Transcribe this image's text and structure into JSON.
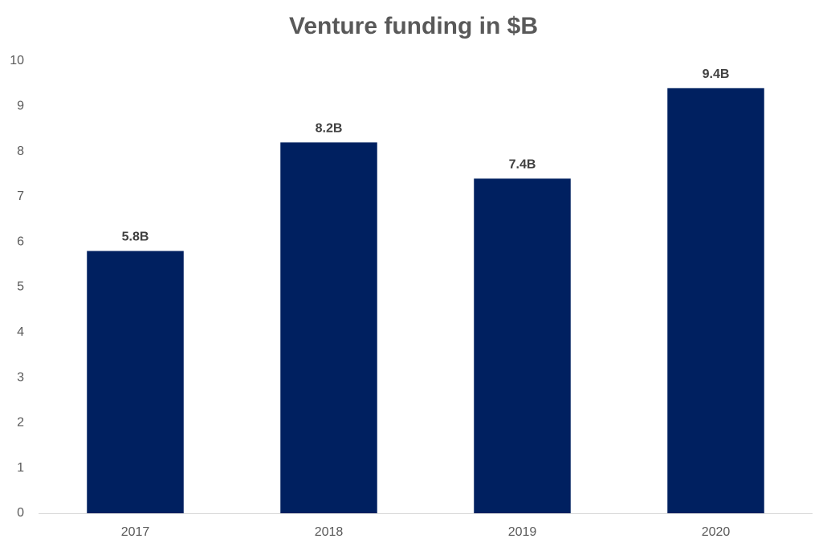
{
  "chart_data": {
    "type": "bar",
    "title": "Venture funding in $B",
    "categories": [
      "2017",
      "2018",
      "2019",
      "2020"
    ],
    "values": [
      5.8,
      8.2,
      7.4,
      9.4
    ],
    "value_labels": [
      "5.8B",
      "8.2B",
      "7.4B",
      "9.4B"
    ],
    "color": "#002060",
    "ylim": [
      0,
      10
    ],
    "yticks": [
      0,
      1,
      2,
      3,
      4,
      5,
      6,
      7,
      8,
      9,
      10
    ],
    "grid": false
  }
}
